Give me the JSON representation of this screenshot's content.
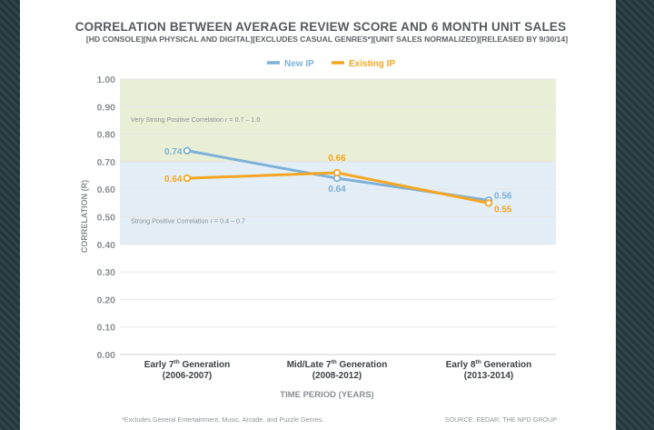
{
  "chart_data": {
    "type": "line",
    "title": "CORRELATION BETWEEN AVERAGE REVIEW SCORE AND 6 MONTH UNIT SALES",
    "subtitle": "[HD CONSOLE][NA PHYSICAL AND DIGITAL][EXCLUDES CASUAL GENRES*][UNIT SALES NORMALIZED][RELEASED BY 9/30/14]",
    "xlabel": "TIME PERIOD (YEARS)",
    "ylabel": "CORRELATION (R)",
    "ylim": [
      0,
      1
    ],
    "yticks": [
      "0.00",
      "0.10",
      "0.20",
      "0.30",
      "0.40",
      "0.50",
      "0.60",
      "0.70",
      "0.80",
      "0.90",
      "1.00"
    ],
    "categories": [
      {
        "name": "Early 7",
        "sup": "th",
        "suffix": " Generation",
        "years": "(2006-2007)"
      },
      {
        "name": "Mid/Late 7",
        "sup": "th",
        "suffix": " Generation",
        "years": "(2008-2012)"
      },
      {
        "name": "Early 8",
        "sup": "th",
        "suffix": " Generation",
        "years": "(2013-2014)"
      }
    ],
    "series": [
      {
        "name": "New IP",
        "color": "#7db1d8",
        "values": [
          0.74,
          0.64,
          0.56
        ],
        "labels": [
          "0.74",
          "0.64",
          "0.56"
        ]
      },
      {
        "name": "Existing IP",
        "color": "#f5a623",
        "values": [
          0.64,
          0.66,
          0.55
        ],
        "labels": [
          "0.64",
          "0.66",
          "0.55"
        ]
      }
    ],
    "bands": [
      {
        "from": 0.7,
        "to": 1.0,
        "color": "#e9eed6",
        "label": "Very Strong Positive Correlation r = 0.7 – 1.0"
      },
      {
        "from": 0.4,
        "to": 0.7,
        "color": "#e4eef6",
        "label": "Strong Positive Correlation r = 0.4 – 0.7"
      }
    ],
    "legend": "top-center",
    "grid": true
  },
  "footnote": "*Excludes General Entertainment, Music, Arcade, and Puzzle Genres.",
  "source": "SOURCE: EEDAR; THE NPD GROUP"
}
